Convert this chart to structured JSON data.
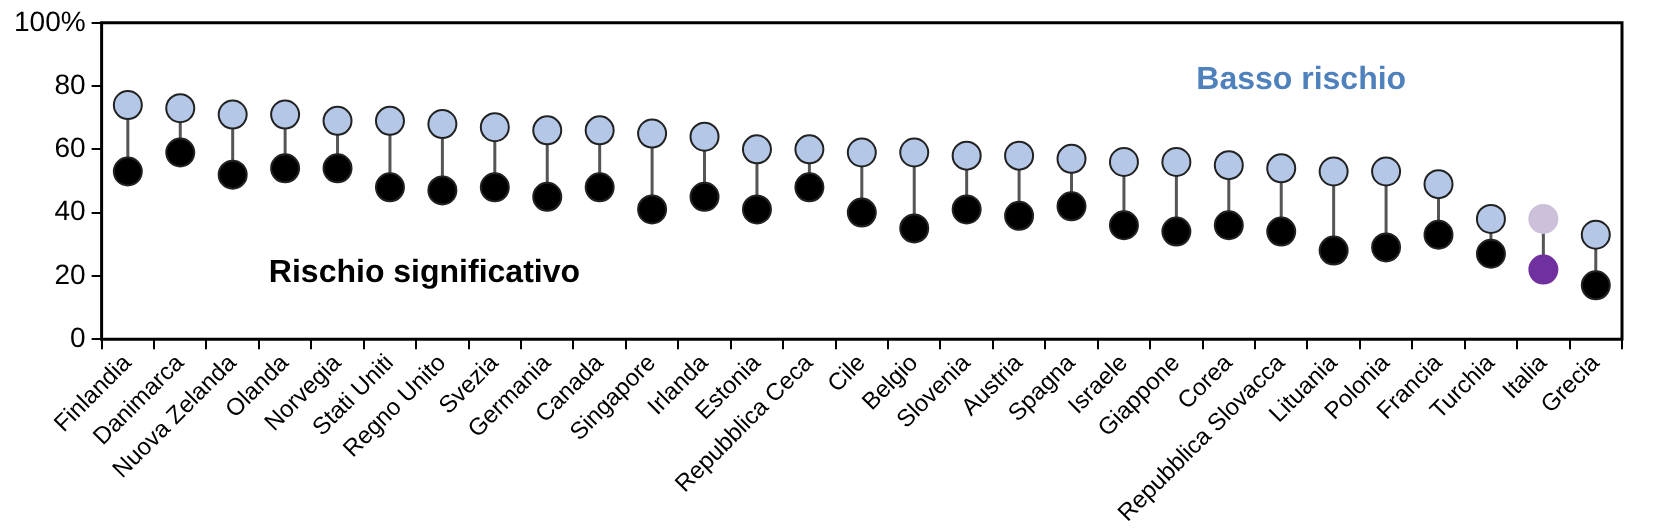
{
  "chart_data": {
    "type": "scatter",
    "categories": [
      "Finlandia",
      "Danimarca",
      "Nuova Zelanda",
      "Olanda",
      "Norvegia",
      "Stati Uniti",
      "Regno Unito",
      "Svezia",
      "Germania",
      "Canada",
      "Singapore",
      "Irlanda",
      "Estonia",
      "Repubblica Ceca",
      "Cile",
      "Belgio",
      "Slovenia",
      "Austria",
      "Spagna",
      "Israele",
      "Giappone",
      "Corea",
      "Repubblica Slovacca",
      "Lituania",
      "Polonia",
      "Francia",
      "Turchia",
      "Italia",
      "Grecia"
    ],
    "series": [
      {
        "name": "Basso rischio",
        "color": "#b4c7e7",
        "colors": [
          "#b4c7e7",
          "#b4c7e7",
          "#b4c7e7",
          "#b4c7e7",
          "#b4c7e7",
          "#b4c7e7",
          "#b4c7e7",
          "#b4c7e7",
          "#b4c7e7",
          "#b4c7e7",
          "#b4c7e7",
          "#b4c7e7",
          "#b4c7e7",
          "#b4c7e7",
          "#b4c7e7",
          "#b4c7e7",
          "#b4c7e7",
          "#b4c7e7",
          "#b4c7e7",
          "#b4c7e7",
          "#b4c7e7",
          "#b4c7e7",
          "#b4c7e7",
          "#b4c7e7",
          "#b4c7e7",
          "#b4c7e7",
          "#b4c7e7",
          "#ccc0da",
          "#b4c7e7"
        ],
        "values": [
          74,
          73,
          71,
          71,
          69,
          69,
          68,
          67,
          66,
          66,
          65,
          64,
          60,
          60,
          59,
          59,
          58,
          58,
          57,
          56,
          56,
          55,
          54,
          53,
          53,
          49,
          38,
          38,
          33
        ]
      },
      {
        "name": "Rischio significativo",
        "color": "#000000",
        "colors": [
          "#000000",
          "#000000",
          "#000000",
          "#000000",
          "#000000",
          "#000000",
          "#000000",
          "#000000",
          "#000000",
          "#000000",
          "#000000",
          "#000000",
          "#000000",
          "#000000",
          "#000000",
          "#000000",
          "#000000",
          "#000000",
          "#000000",
          "#000000",
          "#000000",
          "#000000",
          "#000000",
          "#000000",
          "#000000",
          "#000000",
          "#000000",
          "#7030a0",
          "#000000"
        ],
        "values": [
          53,
          59,
          52,
          54,
          54,
          48,
          47,
          48,
          45,
          48,
          41,
          45,
          41,
          48,
          40,
          35,
          41,
          39,
          42,
          36,
          34,
          36,
          34,
          28,
          29,
          33,
          27,
          22,
          17
        ]
      }
    ],
    "ylim": [
      0,
      100
    ],
    "yticks": [
      0,
      20,
      40,
      60,
      80,
      {
        "value": 100,
        "label": "100%"
      }
    ],
    "grid": false,
    "legend": false,
    "marker": "circle"
  }
}
